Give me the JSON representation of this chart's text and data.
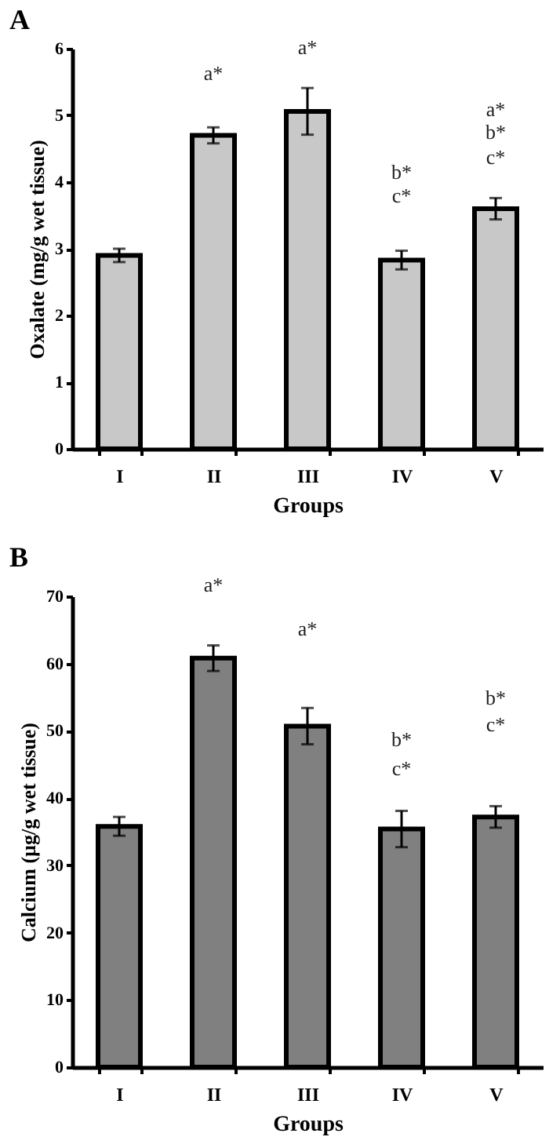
{
  "chart_data": [
    {
      "type": "bar",
      "title": "A",
      "xlabel": "Groups",
      "ylabel": "Oxalate (mg/g wet tissue)",
      "categories": [
        "I",
        "II",
        "III",
        "IV",
        "V"
      ],
      "values": [
        2.9,
        4.7,
        5.06,
        2.83,
        3.6
      ],
      "errors": [
        0.1,
        0.12,
        0.35,
        0.14,
        0.16
      ],
      "color": "#c8c8c8",
      "ylim": [
        0,
        6
      ],
      "yticks": [
        0,
        1,
        2,
        3,
        4,
        5,
        6
      ],
      "grid": false,
      "annotations": [
        "a*",
        "a*",
        "b*",
        "c*",
        "a*",
        "b*",
        "c*"
      ]
    },
    {
      "type": "bar",
      "title": "B",
      "xlabel": "Groups",
      "ylabel": "Calcium (µg/g wet tissue)",
      "categories": [
        "I",
        "II",
        "III",
        "IV",
        "V"
      ],
      "values": [
        35.8,
        60.8,
        50.7,
        35.4,
        37.2
      ],
      "errors": [
        1.4,
        1.9,
        2.7,
        2.7,
        1.6
      ],
      "color": "#808080",
      "ylim": [
        0,
        70
      ],
      "yticks": [
        0,
        10,
        20,
        30,
        40,
        50,
        60,
        70
      ],
      "grid": false,
      "annotations": [
        "a*",
        "a*",
        "b*",
        "c*",
        "b*",
        "c*"
      ]
    }
  ]
}
